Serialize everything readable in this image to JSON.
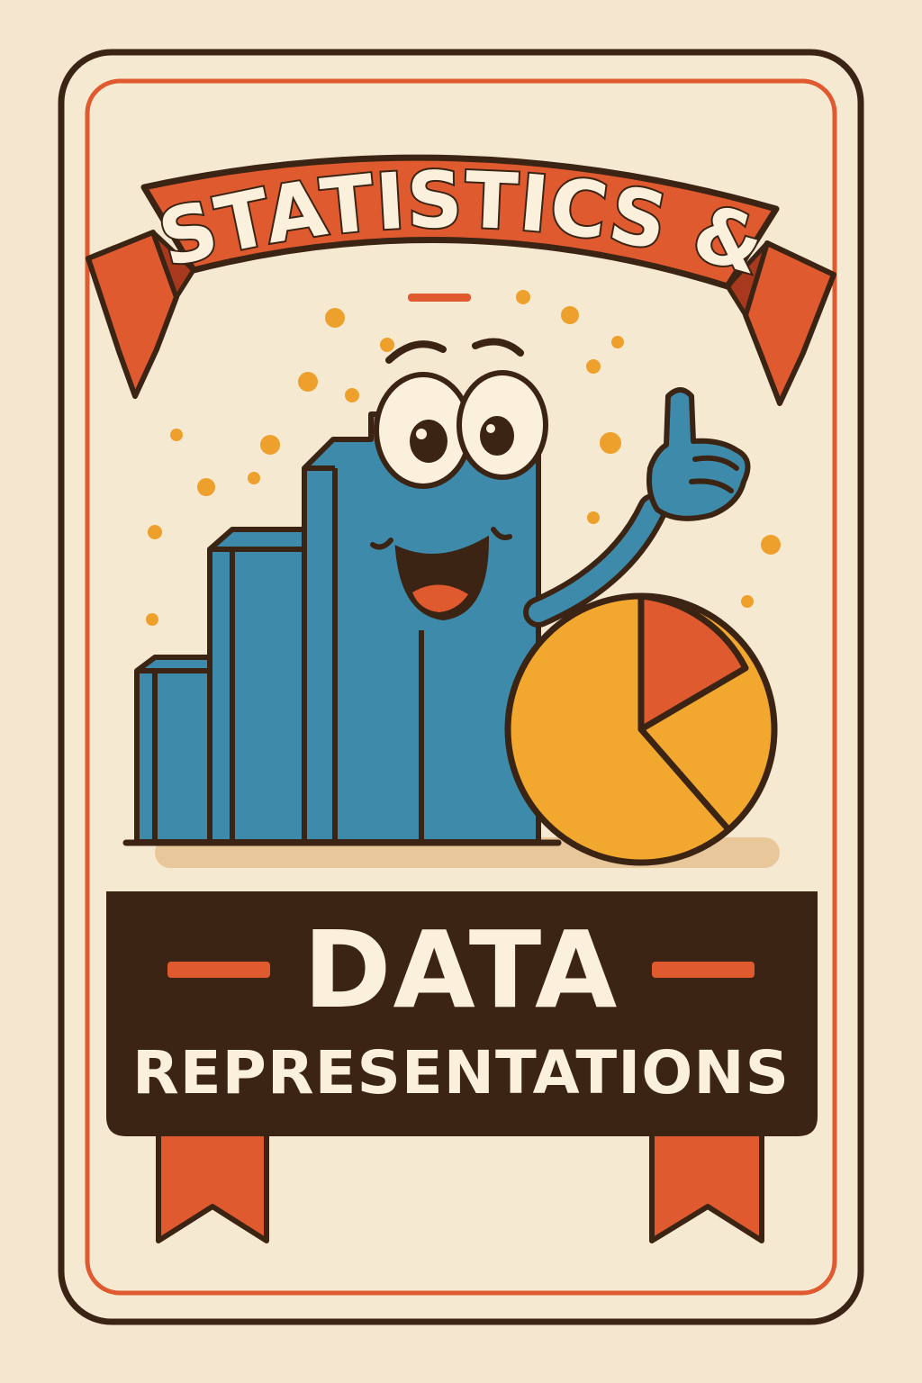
{
  "ribbon": {
    "title": "STATISTICS &"
  },
  "banner": {
    "line1": "DATA",
    "line2": "REPRESENTATIONS"
  },
  "colors": {
    "background": "#f4e6cf",
    "outline": "#3b2414",
    "accent_red": "#e05a30",
    "bar_blue": "#3e8aaa",
    "pie_yellow": "#f2a72e",
    "banner_dark": "#3b2414",
    "dots": "#eea02c"
  },
  "illustration": {
    "mascot": "smiling-bar-chart-mascot",
    "pie": "pie-chart-icon"
  }
}
